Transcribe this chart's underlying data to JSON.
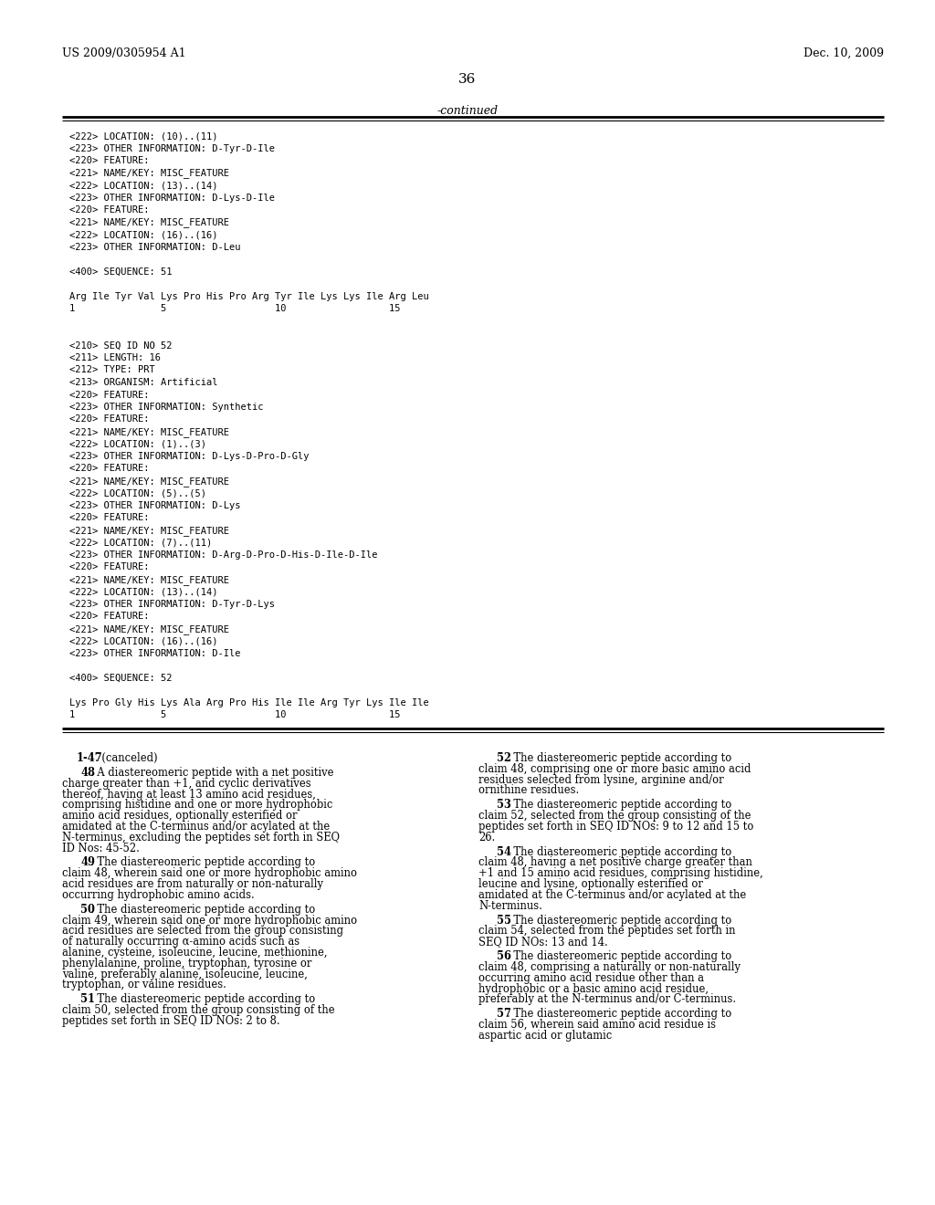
{
  "bg_color": "#ffffff",
  "header_left": "US 2009/0305954 A1",
  "header_right": "Dec. 10, 2009",
  "page_number": "36",
  "continued_label": "-continued",
  "monospace_lines": [
    "<222> LOCATION: (10)..(11)",
    "<223> OTHER INFORMATION: D-Tyr-D-Ile",
    "<220> FEATURE:",
    "<221> NAME/KEY: MISC_FEATURE",
    "<222> LOCATION: (13)..(14)",
    "<223> OTHER INFORMATION: D-Lys-D-Ile",
    "<220> FEATURE:",
    "<221> NAME/KEY: MISC_FEATURE",
    "<222> LOCATION: (16)..(16)",
    "<223> OTHER INFORMATION: D-Leu",
    "",
    "<400> SEQUENCE: 51",
    "",
    "Arg Ile Tyr Val Lys Pro His Pro Arg Tyr Ile Lys Lys Ile Arg Leu",
    "1               5                   10                  15",
    "",
    "",
    "<210> SEQ ID NO 52",
    "<211> LENGTH: 16",
    "<212> TYPE: PRT",
    "<213> ORGANISM: Artificial",
    "<220> FEATURE:",
    "<223> OTHER INFORMATION: Synthetic",
    "<220> FEATURE:",
    "<221> NAME/KEY: MISC_FEATURE",
    "<222> LOCATION: (1)..(3)",
    "<223> OTHER INFORMATION: D-Lys-D-Pro-D-Gly",
    "<220> FEATURE:",
    "<221> NAME/KEY: MISC_FEATURE",
    "<222> LOCATION: (5)..(5)",
    "<223> OTHER INFORMATION: D-Lys",
    "<220> FEATURE:",
    "<221> NAME/KEY: MISC_FEATURE",
    "<222> LOCATION: (7)..(11)",
    "<223> OTHER INFORMATION: D-Arg-D-Pro-D-His-D-Ile-D-Ile",
    "<220> FEATURE:",
    "<221> NAME/KEY: MISC_FEATURE",
    "<222> LOCATION: (13)..(14)",
    "<223> OTHER INFORMATION: D-Tyr-D-Lys",
    "<220> FEATURE:",
    "<221> NAME/KEY: MISC_FEATURE",
    "<222> LOCATION: (16)..(16)",
    "<223> OTHER INFORMATION: D-Ile",
    "",
    "<400> SEQUENCE: 52",
    "",
    "Lys Pro Gly His Lys Ala Arg Pro His Ile Ile Arg Tyr Lys Ile Ile",
    "1               5                   10                  15"
  ],
  "claims_left": [
    [
      "1-47",
      ". (canceled)"
    ],
    [
      "48",
      ". A diastereomeric peptide with a net positive charge greater than +1, and cyclic derivatives thereof, having at least 13 amino acid residues, comprising histidine and one or more hydrophobic amino acid residues, optionally esterified or amidated at the C-terminus and/or acylated at the N-terminus, excluding the peptides set forth in SEQ ID Nos: 45-52."
    ],
    [
      "49",
      ". The diastereomeric peptide according to claim 48, wherein said one or more hydrophobic amino acid residues are from naturally or non-naturally occurring hydrophobic amino acids."
    ],
    [
      "50",
      ". The diastereomeric peptide according to claim 49, wherein said one or more hydrophobic amino acid residues are selected from the group consisting of naturally occurring α-amino acids such as alanine, cysteine, isoleucine, leucine, methionine, phenylalanine, proline, tryptophan, tyrosine or valine, preferably alanine, isoleucine, leucine, tryptophan, or valine residues."
    ],
    [
      "51",
      ". The diastereomeric peptide according to claim 50, selected from the group consisting of the peptides set forth in SEQ ID NOs: 2 to 8."
    ]
  ],
  "claims_right": [
    [
      "52",
      ". The diastereomeric peptide according to claim 48, comprising one or more basic amino acid residues selected from lysine, arginine and/or ornithine residues."
    ],
    [
      "53",
      ". The diastereomeric peptide according to claim 52, selected from the group consisting of the peptides set forth in SEQ ID NOs: 9 to 12 and 15 to 26."
    ],
    [
      "54",
      ". The diastereomeric peptide according to claim 48, having a net positive charge greater than +1 and 15 amino acid residues, comprising histidine, leucine and lysine, optionally esterified or amidated at the C-terminus and/or acylated at the N-terminus."
    ],
    [
      "55",
      ". The diastereomeric peptide according to claim 54, selected from the peptides set forth in SEQ ID NOs: 13 and 14."
    ],
    [
      "56",
      ". The diastereomeric peptide according to claim 48, comprising a naturally or non-naturally occurring amino acid residue other than a hydrophobic or a basic amino acid residue, preferably at the N-terminus and/or C-terminus."
    ],
    [
      "57",
      ". The diastereomeric peptide according to claim 56, wherein said amino acid residue is aspartic acid or glutamic"
    ]
  ]
}
